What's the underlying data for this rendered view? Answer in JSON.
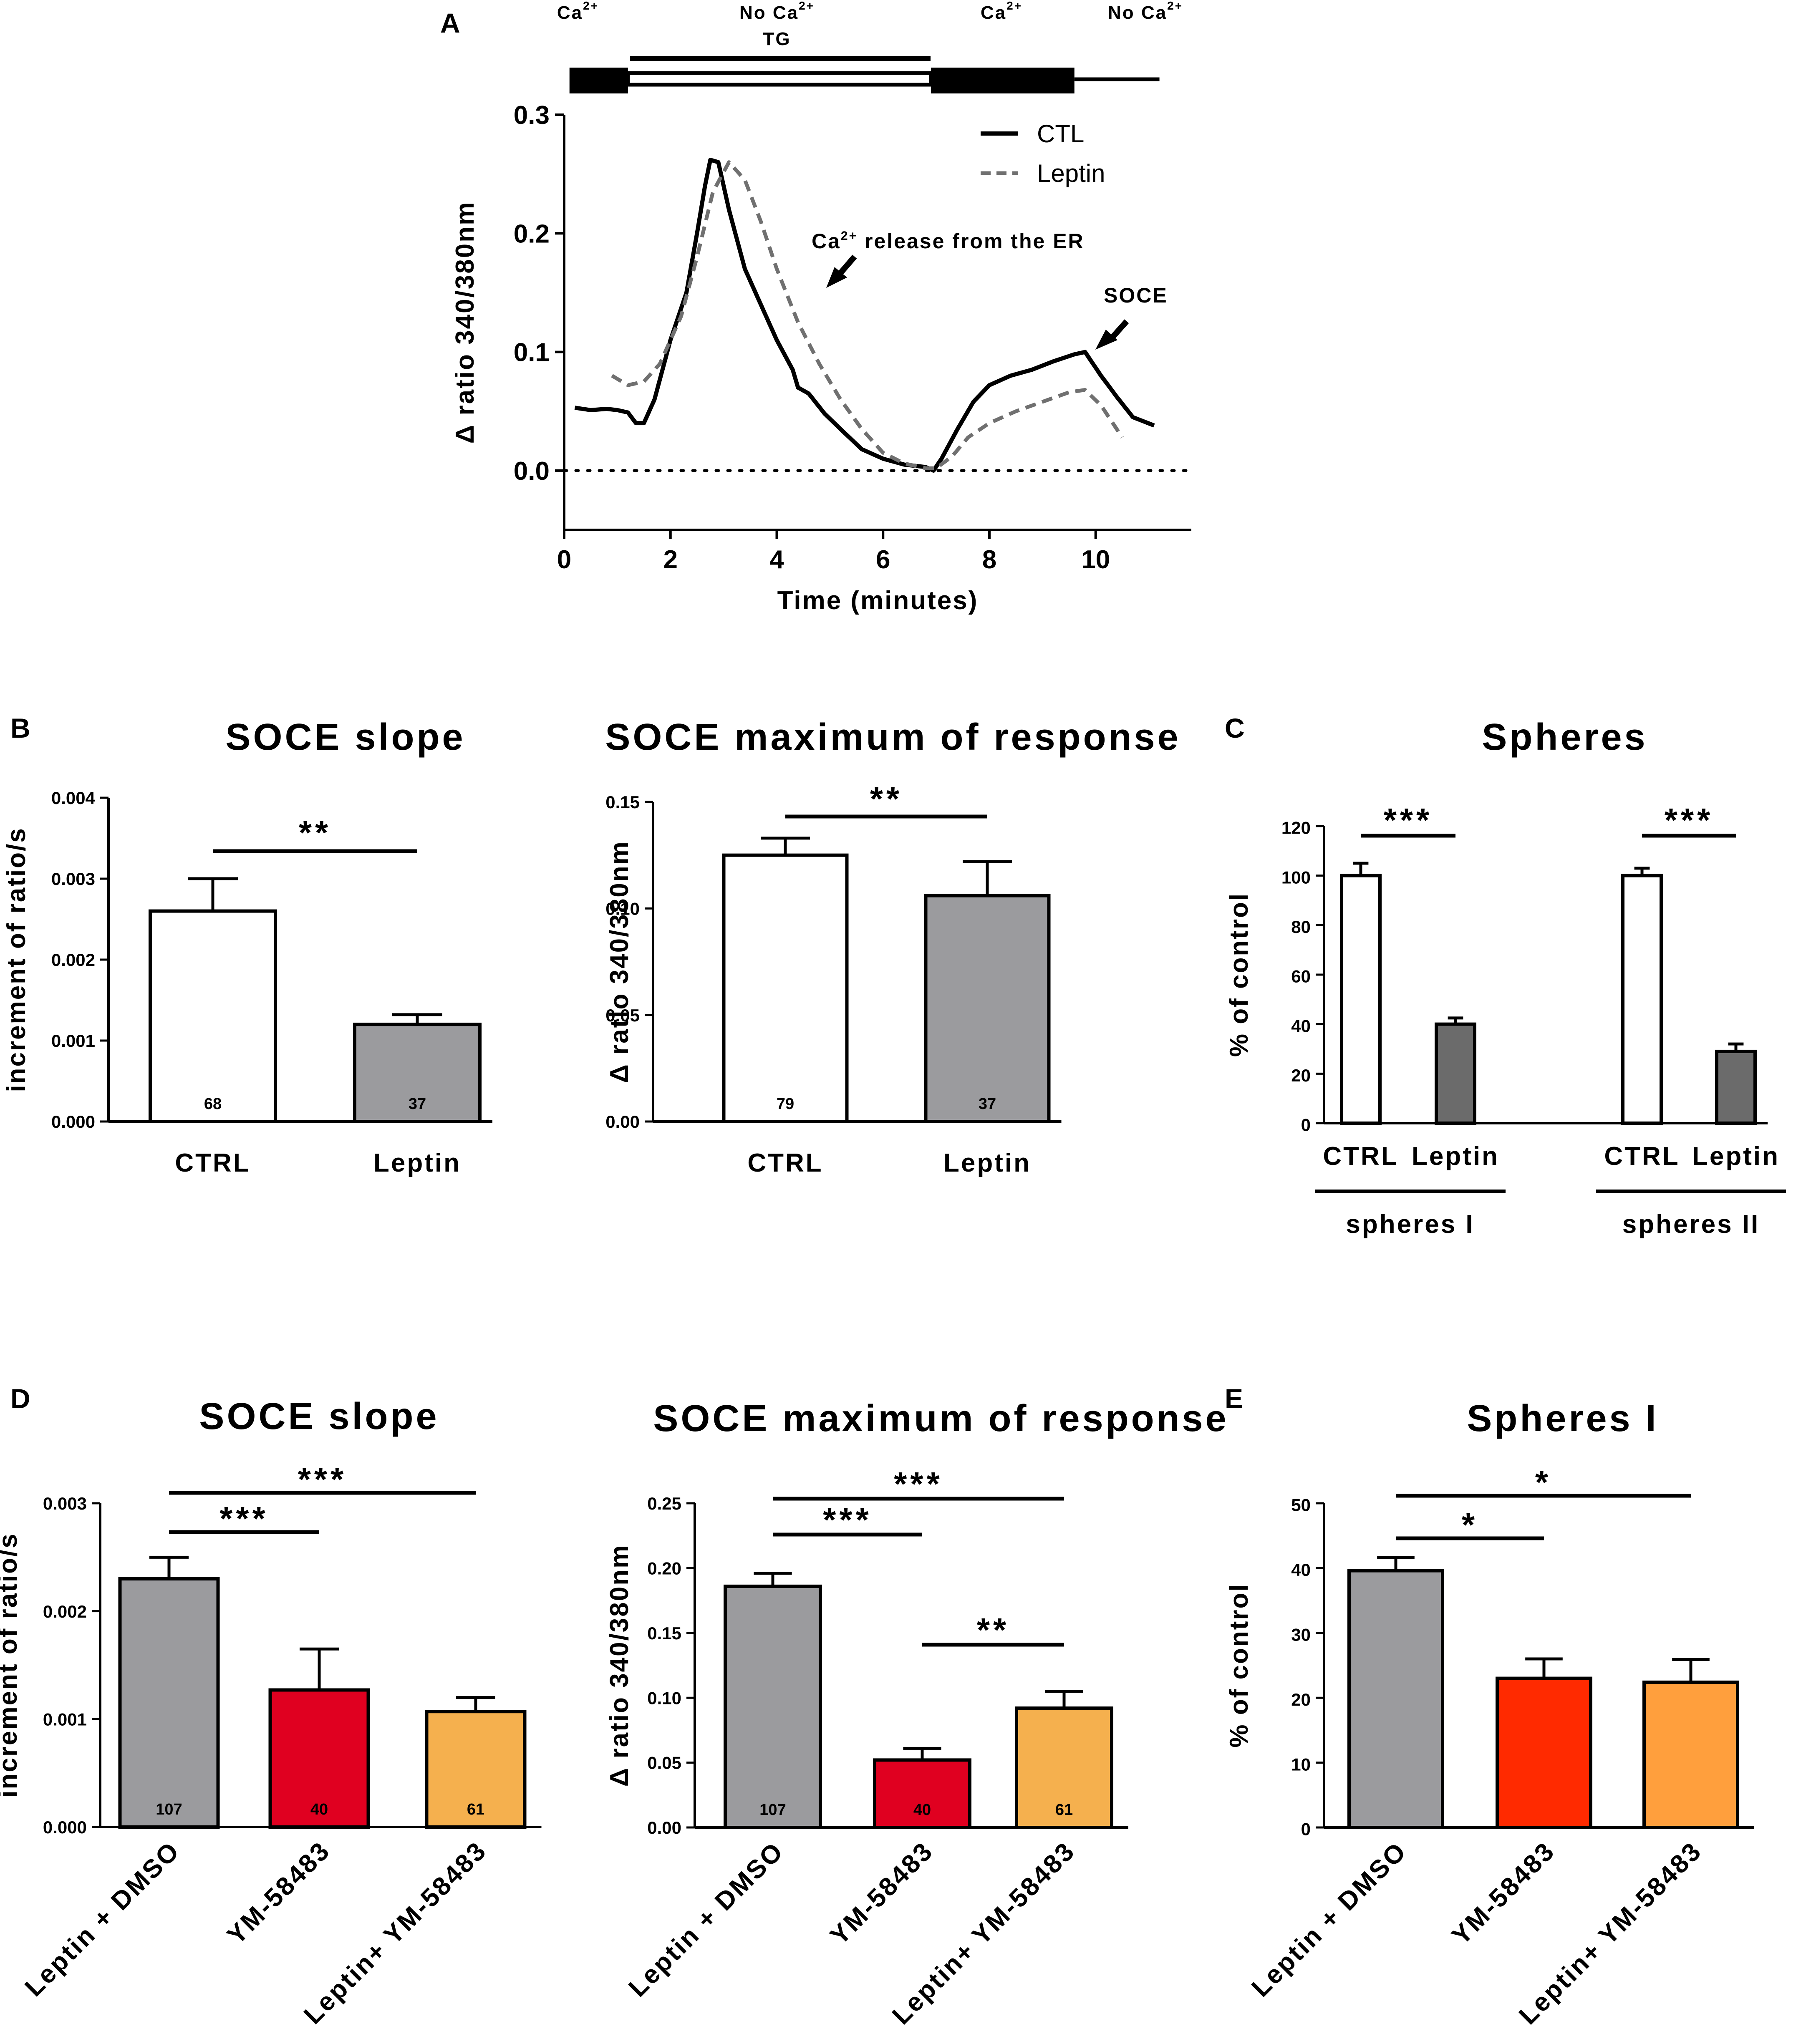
{
  "panel_A": {
    "label": "A",
    "conditions": [
      {
        "main": "Ca",
        "sup": "2+"
      },
      {
        "main": "No Ca",
        "sup": "2+"
      },
      {
        "main": "Ca",
        "sup": "2+"
      },
      {
        "main": "No Ca",
        "sup": "2+"
      }
    ],
    "tg_label": "TG",
    "annotation_er": {
      "main": "Ca",
      "sup": "2+",
      "rest": " release from the ER"
    },
    "annotation_soce": "SOCE"
  },
  "chart_data": [
    {
      "id": "A",
      "type": "line",
      "xlabel": "Time (minutes)",
      "ylabel": "Δ ratio 340/380nm",
      "xlim": [
        0,
        11.8
      ],
      "ylim": [
        -0.05,
        0.3
      ],
      "xticks": [
        "0",
        "2",
        "4",
        "6",
        "8",
        "10"
      ],
      "yticks": [
        "0.0",
        "0.1",
        "0.2",
        "0.3"
      ],
      "series": [
        {
          "name": "CTL",
          "style": "solid",
          "x": [
            0.2,
            0.5,
            0.8,
            1.0,
            1.2,
            1.35,
            1.5,
            1.7,
            2.0,
            2.3,
            2.5,
            2.65,
            2.75,
            2.9,
            3.1,
            3.4,
            3.7,
            4.0,
            4.3,
            4.4,
            4.6,
            4.9,
            5.2,
            5.6,
            6.0,
            6.4,
            6.8,
            6.95,
            7.1,
            7.4,
            7.7,
            8.0,
            8.4,
            8.8,
            9.2,
            9.6,
            9.8,
            10.1,
            10.4,
            10.7,
            11.1
          ],
          "y": [
            0.053,
            0.051,
            0.052,
            0.051,
            0.049,
            0.04,
            0.04,
            0.06,
            0.11,
            0.15,
            0.2,
            0.24,
            0.262,
            0.26,
            0.22,
            0.17,
            0.14,
            0.11,
            0.085,
            0.07,
            0.065,
            0.048,
            0.035,
            0.018,
            0.01,
            0.005,
            0.003,
            0.0,
            0.01,
            0.035,
            0.058,
            0.072,
            0.08,
            0.085,
            0.092,
            0.098,
            0.1,
            0.08,
            0.062,
            0.045,
            0.038
          ]
        },
        {
          "name": "Leptin",
          "style": "dashed",
          "x": [
            0.9,
            1.2,
            1.5,
            1.8,
            2.2,
            2.5,
            2.8,
            3.1,
            3.4,
            3.7,
            4.0,
            4.4,
            4.8,
            5.2,
            5.6,
            6.0,
            6.4,
            6.8,
            7.0,
            7.3,
            7.6,
            8.0,
            8.5,
            9.0,
            9.5,
            9.8,
            10.1,
            10.5
          ],
          "y": [
            0.08,
            0.072,
            0.075,
            0.09,
            0.13,
            0.18,
            0.235,
            0.26,
            0.245,
            0.21,
            0.17,
            0.125,
            0.09,
            0.06,
            0.035,
            0.015,
            0.006,
            0.002,
            0.002,
            0.012,
            0.028,
            0.04,
            0.05,
            0.058,
            0.066,
            0.068,
            0.055,
            0.028
          ]
        }
      ],
      "legend": [
        {
          "name": "CTL",
          "style": "solid"
        },
        {
          "name": "Leptin",
          "style": "dashed"
        }
      ],
      "legend_position": "top-right",
      "protocol_bars": [
        {
          "x_start": 0.1,
          "x_end": 1.2,
          "style": "thick"
        },
        {
          "x_start": 1.2,
          "x_end": 6.9,
          "style": "double"
        },
        {
          "x_start": 6.9,
          "x_end": 9.6,
          "style": "thick"
        },
        {
          "x_start": 9.6,
          "x_end": 11.2,
          "style": "thin"
        }
      ]
    },
    {
      "id": "B1",
      "panel_label": "B",
      "type": "bar",
      "title": "SOCE slope",
      "ylabel": "increment of ratio/s",
      "categories": [
        "CTRL",
        "Leptin"
      ],
      "values": [
        0.0026,
        0.0012
      ],
      "errors": [
        0.0004,
        0.00012
      ],
      "n": [
        "68",
        "37"
      ],
      "colors": [
        "#ffffff",
        "#9b9b9e"
      ],
      "ylim": [
        0,
        0.004
      ],
      "yticks": [
        "0.000",
        "0.001",
        "0.002",
        "0.003",
        "0.004"
      ],
      "significance": [
        {
          "from": 0,
          "to": 1,
          "label": "**"
        }
      ]
    },
    {
      "id": "B2",
      "type": "bar",
      "title": "SOCE maximum of response",
      "ylabel": "Δ ratio 340/380nm",
      "categories": [
        "CTRL",
        "Leptin"
      ],
      "values": [
        0.125,
        0.106
      ],
      "errors": [
        0.008,
        0.016
      ],
      "n": [
        "79",
        "37"
      ],
      "colors": [
        "#ffffff",
        "#9b9b9e"
      ],
      "ylim": [
        0,
        0.15
      ],
      "yticks": [
        "0.00",
        "0.05",
        "0.10",
        "0.15"
      ],
      "significance": [
        {
          "from": 0,
          "to": 1,
          "label": "**"
        }
      ]
    },
    {
      "id": "C",
      "panel_label": "C",
      "type": "bar",
      "title": "Spheres",
      "ylabel": "% of control",
      "categories": [
        "CTRL",
        "Leptin",
        "CTRL",
        "Leptin"
      ],
      "values": [
        100,
        40,
        100,
        29
      ],
      "errors": [
        5,
        2.5,
        3,
        3
      ],
      "colors": [
        "#ffffff",
        "#6b6b6b",
        "#ffffff",
        "#6b6b6b"
      ],
      "ylim": [
        0,
        120
      ],
      "yticks": [
        "0",
        "20",
        "40",
        "60",
        "80",
        "100",
        "120"
      ],
      "groups": [
        {
          "label": "spheres I",
          "members": [
            0,
            1
          ]
        },
        {
          "label": "spheres II",
          "members": [
            2,
            3
          ]
        }
      ],
      "significance": [
        {
          "from": 0,
          "to": 1,
          "label": "***"
        },
        {
          "from": 2,
          "to": 3,
          "label": "***"
        }
      ]
    },
    {
      "id": "D1",
      "panel_label": "D",
      "type": "bar",
      "title": "SOCE slope",
      "ylabel": "increment of ratio/s",
      "categories": [
        "Leptin + DMSO",
        "YM-58483",
        "Leptin+ YM-58483"
      ],
      "values": [
        0.0023,
        0.00127,
        0.00107
      ],
      "errors": [
        0.0002,
        0.00038,
        0.00013
      ],
      "n": [
        "107",
        "40",
        "61"
      ],
      "colors": [
        "#9b9b9e",
        "#e00020",
        "#f5b04e"
      ],
      "ylim": [
        0,
        0.003
      ],
      "yticks": [
        "0.000",
        "0.001",
        "0.002",
        "0.003"
      ],
      "significance": [
        {
          "from": 0,
          "to": 1,
          "label": "***"
        },
        {
          "from": 0,
          "to": 2,
          "label": "***"
        }
      ]
    },
    {
      "id": "D2",
      "type": "bar",
      "title": "SOCE maximum of response",
      "ylabel": "Δ ratio 340/380nm",
      "categories": [
        "Leptin + DMSO",
        "YM-58483",
        "Leptin+ YM-58483"
      ],
      "values": [
        0.186,
        0.052,
        0.092
      ],
      "errors": [
        0.01,
        0.009,
        0.013
      ],
      "n": [
        "107",
        "40",
        "61"
      ],
      "colors": [
        "#9b9b9e",
        "#e00020",
        "#f5b04e"
      ],
      "ylim": [
        0,
        0.25
      ],
      "yticks": [
        "0.00",
        "0.05",
        "0.10",
        "0.15",
        "0.20",
        "0.25"
      ],
      "significance": [
        {
          "from": 0,
          "to": 1,
          "label": "***"
        },
        {
          "from": 0,
          "to": 2,
          "label": "***"
        },
        {
          "from": 1,
          "to": 2,
          "label": "**"
        }
      ]
    },
    {
      "id": "E",
      "panel_label": "E",
      "type": "bar",
      "title": "Spheres I",
      "ylabel": "% of control",
      "categories": [
        "Leptin + DMSO",
        "YM-58483",
        "Leptin+ YM-58483"
      ],
      "values": [
        39.6,
        23,
        22.4
      ],
      "errors": [
        2,
        3,
        3.5
      ],
      "colors": [
        "#9b9b9e",
        "#ff2a00",
        "#ff9f3d"
      ],
      "ylim": [
        0,
        50
      ],
      "yticks": [
        "0",
        "10",
        "20",
        "30",
        "40",
        "50"
      ],
      "significance": [
        {
          "from": 0,
          "to": 1,
          "label": "*"
        },
        {
          "from": 0,
          "to": 2,
          "label": "*"
        }
      ]
    }
  ]
}
